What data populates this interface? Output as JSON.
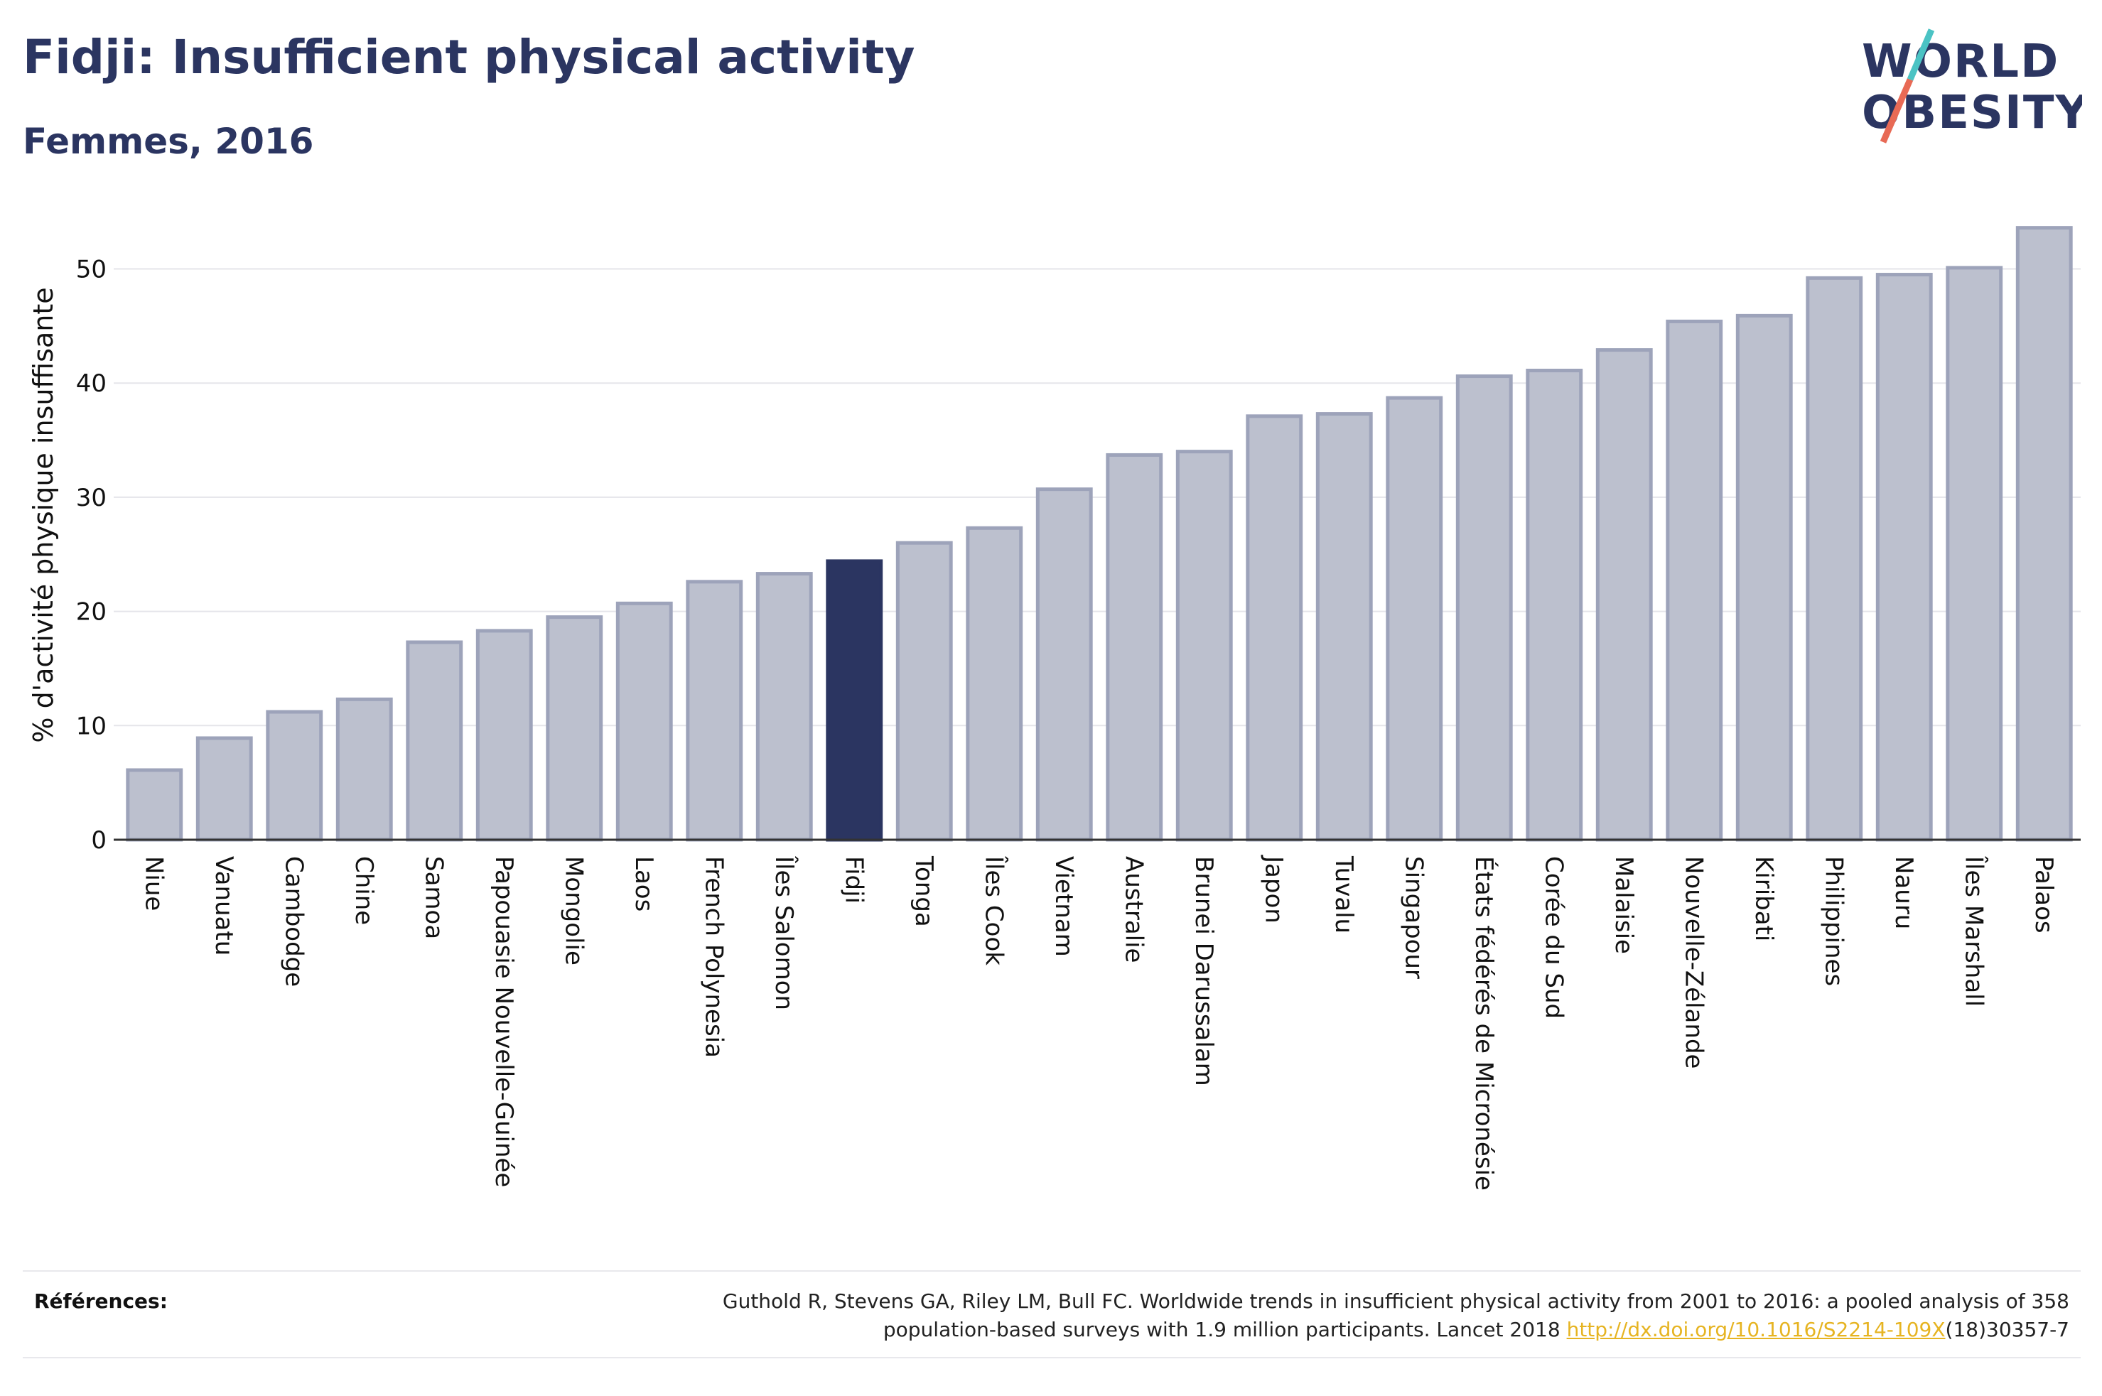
{
  "header": {
    "title": "Fidji: Insufficient physical activity",
    "subtitle": "Femmes, 2016"
  },
  "logo": {
    "line1": "WORLD",
    "line2": "OBESITY",
    "accent_colors": [
      "#4bc3c4",
      "#e86a55"
    ]
  },
  "colors": {
    "bar_default": "#bcc0ce",
    "bar_border": "#9da3ba",
    "bar_highlight": "#2b3561",
    "grid": "#e5e5ea",
    "axis": "#333333"
  },
  "chart_data": {
    "type": "bar",
    "ylabel": "% d'activité physique insuffisante",
    "ylim": [
      0,
      55
    ],
    "yticks": [
      0,
      10,
      20,
      30,
      40,
      50
    ],
    "grid": true,
    "highlight": "Fidji",
    "categories": [
      "Niue",
      "Vanuatu",
      "Cambodge",
      "Chine",
      "Samoa",
      "Papouasie Nouvelle-Guinée",
      "Mongolie",
      "Laos",
      "French Polynesia",
      "Îles Salomon",
      "Fidji",
      "Tonga",
      "Îles Cook",
      "Vietnam",
      "Australie",
      "Brunei Darussalam",
      "Japon",
      "Tuvalu",
      "Singapour",
      "États fédérés de Micronésie",
      "Corée du Sud",
      "Malaisie",
      "Nouvelle-Zélande",
      "Kiribati",
      "Philippines",
      "Nauru",
      "Îles Marshall",
      "Palaos"
    ],
    "values": [
      6.1,
      8.9,
      11.2,
      12.3,
      17.3,
      18.3,
      19.5,
      20.7,
      22.6,
      23.3,
      24.4,
      26.0,
      27.3,
      30.7,
      33.7,
      34.0,
      37.1,
      37.3,
      38.7,
      40.6,
      41.1,
      42.9,
      45.4,
      45.9,
      49.2,
      49.5,
      50.1,
      53.6
    ]
  },
  "references": {
    "label": "Références:",
    "line1": "Guthold R, Stevens GA, Riley LM, Bull FC. Worldwide trends in insufficient physical activity from 2001 to 2016: a pooled analysis of 358",
    "line2_pre": "population-based surveys with 1.9 million participants. Lancet 2018 ",
    "link": "http://dx.doi.org/10.1016/S2214-109X",
    "line2_post": "(18)30357-7"
  }
}
